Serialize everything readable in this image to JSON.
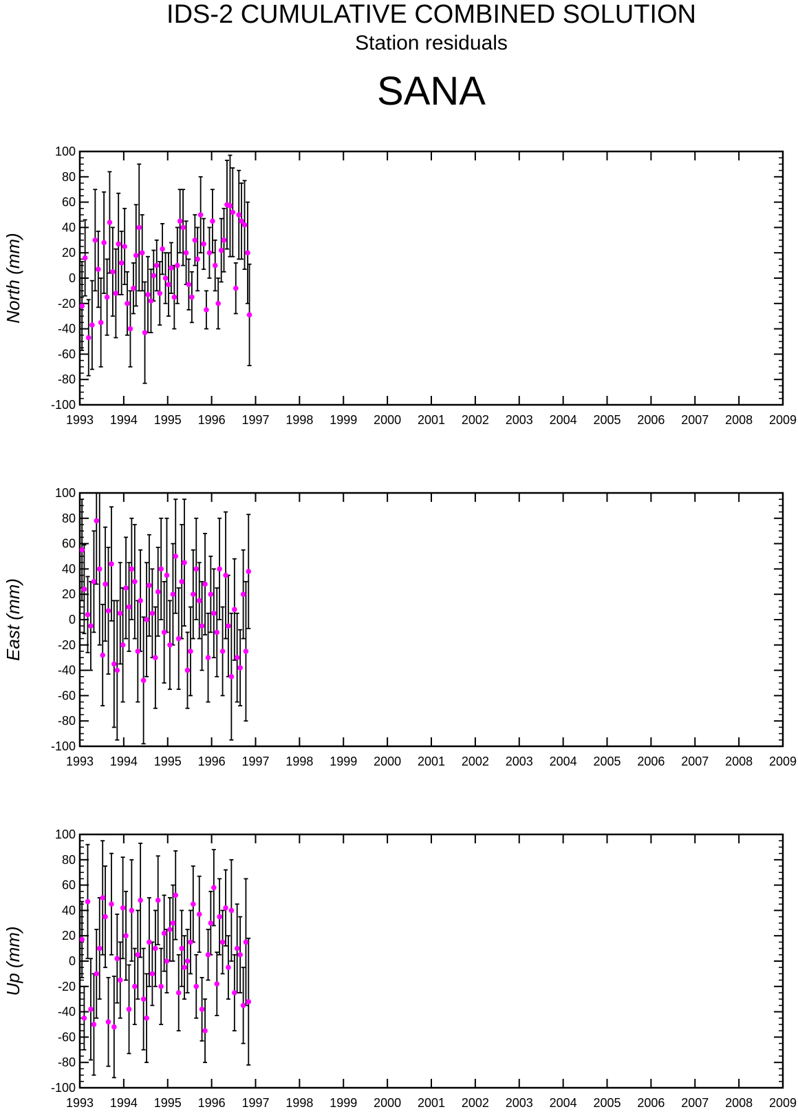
{
  "title": "IDS-2 CUMULATIVE COMBINED SOLUTION",
  "subtitle": "Station residuals",
  "station": "SANA",
  "colors": {
    "point": "#ff00ff",
    "errorbar": "#000000",
    "axis": "#000000"
  },
  "chart_data": [
    {
      "type": "scatter",
      "ylabel": "North (mm)",
      "xlim": [
        1993,
        2009
      ],
      "ylim": [
        -100,
        100
      ],
      "x_ticks": [
        "1993",
        "1994",
        "1995",
        "1996",
        "1997",
        "1998",
        "1999",
        "2000",
        "2001",
        "2002",
        "2003",
        "2004",
        "2005",
        "2006",
        "2007",
        "2008",
        "2009"
      ],
      "y_ticks": [
        "100",
        "80",
        "60",
        "40",
        "20",
        "0",
        "-20",
        "-40",
        "-60",
        "-80",
        "-100"
      ],
      "grid": false,
      "series": [
        {
          "x": [
            1993.05,
            1993.12,
            1993.2,
            1993.28,
            1993.35,
            1993.42,
            1993.48,
            1993.55,
            1993.62,
            1993.68,
            1993.75,
            1993.82,
            1993.88,
            1993.95,
            1994.02,
            1994.08,
            1994.15,
            1994.22,
            1994.28,
            1994.35,
            1994.42,
            1994.48,
            1994.55,
            1994.62,
            1994.68,
            1994.75,
            1994.82,
            1994.88,
            1994.95,
            1995.02,
            1995.08,
            1995.15,
            1995.22,
            1995.28,
            1995.35,
            1995.42,
            1995.48,
            1995.55,
            1995.62,
            1995.68,
            1995.75,
            1995.82,
            1995.88,
            1995.95,
            1996.02,
            1996.08,
            1996.15,
            1996.22,
            1996.28,
            1996.35,
            1996.42,
            1996.48,
            1996.55,
            1996.62,
            1996.68,
            1996.75,
            1996.82,
            1996.86
          ],
          "y": [
            -22,
            16,
            -47,
            -37,
            30,
            7,
            -35,
            28,
            -15,
            44,
            5,
            -12,
            27,
            12,
            25,
            -20,
            -40,
            -8,
            18,
            40,
            20,
            -43,
            -13,
            -18,
            2,
            10,
            -12,
            23,
            0,
            -5,
            8,
            -15,
            10,
            45,
            40,
            20,
            -5,
            -15,
            30,
            15,
            50,
            27,
            -25,
            20,
            45,
            10,
            -20,
            22,
            30,
            58,
            57,
            52,
            -8,
            50,
            45,
            42,
            20,
            -29
          ],
          "err": [
            35,
            30,
            30,
            35,
            40,
            30,
            35,
            40,
            30,
            40,
            35,
            35,
            40,
            25,
            30,
            25,
            30,
            20,
            40,
            50,
            30,
            40,
            30,
            25,
            20,
            20,
            25,
            20,
            20,
            25,
            20,
            25,
            30,
            25,
            30,
            25,
            20,
            20,
            20,
            25,
            30,
            20,
            15,
            20,
            25,
            20,
            20,
            25,
            25,
            35,
            40,
            35,
            20,
            35,
            30,
            35,
            40,
            40
          ]
        }
      ]
    },
    {
      "type": "scatter",
      "ylabel": "East (mm)",
      "xlim": [
        1993,
        2009
      ],
      "ylim": [
        -100,
        100
      ],
      "x_ticks": [
        "1993",
        "1994",
        "1995",
        "1996",
        "1997",
        "1998",
        "1999",
        "2000",
        "2001",
        "2002",
        "2003",
        "2004",
        "2005",
        "2006",
        "2007",
        "2008",
        "2009"
      ],
      "y_ticks": [
        "100",
        "80",
        "60",
        "40",
        "20",
        "0",
        "-20",
        "-40",
        "-60",
        "-80",
        "-100"
      ],
      "grid": false,
      "series": [
        {
          "x": [
            1993.05,
            1993.1,
            1993.18,
            1993.25,
            1993.32,
            1993.38,
            1993.45,
            1993.52,
            1993.58,
            1993.65,
            1993.72,
            1993.78,
            1993.85,
            1993.92,
            1993.98,
            1994.05,
            1994.12,
            1994.18,
            1994.25,
            1994.32,
            1994.38,
            1994.45,
            1994.52,
            1994.58,
            1994.65,
            1994.72,
            1994.78,
            1994.85,
            1994.92,
            1994.98,
            1995.05,
            1995.12,
            1995.18,
            1995.25,
            1995.32,
            1995.38,
            1995.45,
            1995.52,
            1995.58,
            1995.65,
            1995.72,
            1995.78,
            1995.85,
            1995.92,
            1995.98,
            1996.05,
            1996.12,
            1996.18,
            1996.25,
            1996.32,
            1996.38,
            1996.45,
            1996.52,
            1996.58,
            1996.65,
            1996.72,
            1996.78,
            1996.84
          ],
          "y": [
            55,
            24,
            4,
            -5,
            30,
            78,
            40,
            -28,
            28,
            7,
            44,
            -35,
            -40,
            5,
            -20,
            25,
            10,
            40,
            30,
            -25,
            15,
            -48,
            0,
            27,
            5,
            -30,
            22,
            40,
            -10,
            35,
            -20,
            20,
            50,
            -15,
            30,
            45,
            -40,
            -25,
            20,
            40,
            15,
            -5,
            28,
            -30,
            20,
            5,
            -10,
            40,
            -25,
            35,
            -5,
            -45,
            8,
            -30,
            -38,
            20,
            -25,
            38
          ],
          "err": [
            40,
            35,
            30,
            35,
            40,
            50,
            60,
            40,
            45,
            50,
            45,
            50,
            55,
            40,
            45,
            40,
            35,
            40,
            45,
            40,
            40,
            50,
            45,
            40,
            35,
            40,
            35,
            40,
            40,
            45,
            35,
            40,
            45,
            40,
            45,
            50,
            30,
            35,
            35,
            40,
            30,
            35,
            40,
            35,
            30,
            35,
            35,
            40,
            35,
            50,
            40,
            50,
            40,
            35,
            30,
            35,
            55,
            45
          ]
        }
      ]
    },
    {
      "type": "scatter",
      "ylabel": "Up (mm)",
      "xlim": [
        1993,
        2009
      ],
      "ylim": [
        -100,
        100
      ],
      "x_ticks": [
        "1993",
        "1994",
        "1995",
        "1996",
        "1997",
        "1998",
        "1999",
        "2000",
        "2001",
        "2002",
        "2003",
        "2004",
        "2005",
        "2006",
        "2007",
        "2008",
        "2009"
      ],
      "y_ticks": [
        "100",
        "80",
        "60",
        "40",
        "20",
        "0",
        "-20",
        "-40",
        "-60",
        "-80",
        "-100"
      ],
      "grid": false,
      "series": [
        {
          "x": [
            1993.05,
            1993.1,
            1993.18,
            1993.25,
            1993.32,
            1993.38,
            1993.45,
            1993.52,
            1993.58,
            1993.65,
            1993.72,
            1993.78,
            1993.85,
            1993.92,
            1993.98,
            1994.05,
            1994.12,
            1994.18,
            1994.25,
            1994.32,
            1994.38,
            1994.45,
            1994.52,
            1994.58,
            1994.65,
            1994.72,
            1994.78,
            1994.85,
            1994.92,
            1994.98,
            1995.05,
            1995.12,
            1995.18,
            1995.25,
            1995.32,
            1995.38,
            1995.45,
            1995.52,
            1995.58,
            1995.65,
            1995.72,
            1995.78,
            1995.85,
            1995.92,
            1995.98,
            1996.05,
            1996.12,
            1996.18,
            1996.25,
            1996.32,
            1996.38,
            1996.45,
            1996.52,
            1996.58,
            1996.65,
            1996.72,
            1996.78,
            1996.84
          ],
          "y": [
            17,
            -45,
            47,
            -38,
            -50,
            -10,
            10,
            50,
            35,
            -48,
            45,
            -52,
            2,
            -15,
            42,
            20,
            -38,
            40,
            -20,
            5,
            48,
            -30,
            -45,
            15,
            -10,
            10,
            48,
            -20,
            22,
            0,
            25,
            30,
            52,
            -25,
            10,
            -5,
            0,
            15,
            45,
            -20,
            37,
            -38,
            -55,
            5,
            30,
            58,
            -18,
            35,
            15,
            42,
            -5,
            40,
            -25,
            10,
            5,
            -35,
            15,
            -32
          ],
          "err": [
            30,
            25,
            45,
            40,
            40,
            35,
            40,
            45,
            40,
            35,
            40,
            40,
            35,
            30,
            40,
            35,
            35,
            40,
            30,
            35,
            45,
            40,
            35,
            35,
            25,
            30,
            35,
            30,
            30,
            25,
            25,
            30,
            35,
            30,
            30,
            25,
            25,
            25,
            30,
            25,
            30,
            25,
            25,
            20,
            25,
            30,
            25,
            30,
            25,
            30,
            25,
            40,
            30,
            35,
            30,
            30,
            50,
            50
          ]
        }
      ]
    }
  ]
}
